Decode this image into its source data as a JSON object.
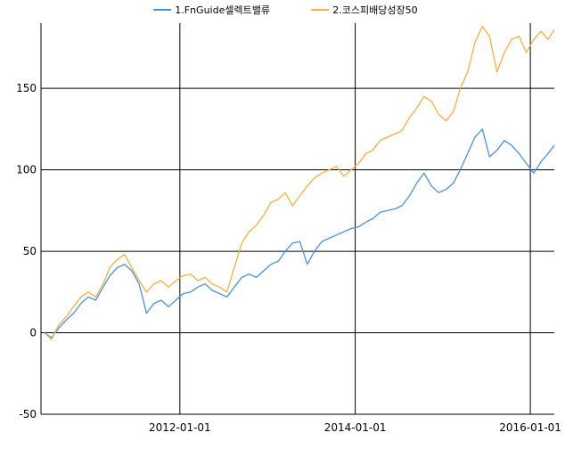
{
  "chart_data": {
    "type": "line",
    "legend_position": "top-center",
    "grid": true,
    "ylim": [
      -50,
      190
    ],
    "y_ticks": [
      -50,
      0,
      50,
      100,
      150
    ],
    "xlim": [
      "2010-06-01",
      "2016-04-10"
    ],
    "x_ticks": [
      "2012-01-01",
      "2014-01-01",
      "2016-01-01"
    ],
    "x": [
      "2010-06",
      "2010-07",
      "2010-08",
      "2010-09",
      "2010-10",
      "2010-11",
      "2010-12",
      "2011-01",
      "2011-02",
      "2011-03",
      "2011-04",
      "2011-05",
      "2011-06",
      "2011-07",
      "2011-08",
      "2011-09",
      "2011-10",
      "2011-11",
      "2011-12",
      "2012-01",
      "2012-02",
      "2012-03",
      "2012-04",
      "2012-05",
      "2012-06",
      "2012-07",
      "2012-08",
      "2012-09",
      "2012-10",
      "2012-11",
      "2012-12",
      "2013-01",
      "2013-02",
      "2013-03",
      "2013-04",
      "2013-05",
      "2013-06",
      "2013-07",
      "2013-08",
      "2013-09",
      "2013-10",
      "2013-11",
      "2013-12",
      "2014-01",
      "2014-02",
      "2014-03",
      "2014-04",
      "2014-05",
      "2014-06",
      "2014-07",
      "2014-08",
      "2014-09",
      "2014-10",
      "2014-11",
      "2014-12",
      "2015-01",
      "2015-02",
      "2015-03",
      "2015-04",
      "2015-05",
      "2015-06",
      "2015-07",
      "2015-08",
      "2015-09",
      "2015-10",
      "2015-11",
      "2015-12",
      "2016-01",
      "2016-02",
      "2016-03",
      "2016-04"
    ],
    "series": [
      {
        "name": "1.FnGuide셀렉트밸류",
        "color": "#4a90e2",
        "values": [
          0,
          -3,
          3,
          8,
          12,
          18,
          22,
          20,
          28,
          35,
          40,
          42,
          38,
          30,
          12,
          18,
          20,
          16,
          20,
          24,
          25,
          28,
          30,
          26,
          24,
          22,
          28,
          34,
          36,
          34,
          38,
          42,
          44,
          50,
          55,
          56,
          42,
          50,
          56,
          58,
          60,
          62,
          64,
          65,
          68,
          70,
          74,
          75,
          76,
          78,
          84,
          92,
          98,
          90,
          86,
          88,
          92,
          100,
          110,
          120,
          125,
          108,
          112,
          118,
          115,
          110,
          104,
          98,
          105,
          110,
          115
        ]
      },
      {
        "name": "2.코스피배당성장50",
        "color": "#f5b041",
        "values": [
          0,
          -4,
          5,
          10,
          16,
          22,
          25,
          22,
          30,
          40,
          45,
          48,
          40,
          32,
          25,
          30,
          32,
          28,
          32,
          35,
          36,
          32,
          34,
          30,
          28,
          25,
          40,
          55,
          62,
          66,
          72,
          80,
          82,
          86,
          78,
          84,
          90,
          95,
          98,
          100,
          102,
          96,
          100,
          104,
          110,
          112,
          118,
          120,
          122,
          124,
          132,
          138,
          145,
          142,
          134,
          130,
          136,
          150,
          160,
          178,
          188,
          182,
          160,
          172,
          180,
          182,
          172,
          180,
          185,
          180,
          186
        ]
      }
    ]
  }
}
